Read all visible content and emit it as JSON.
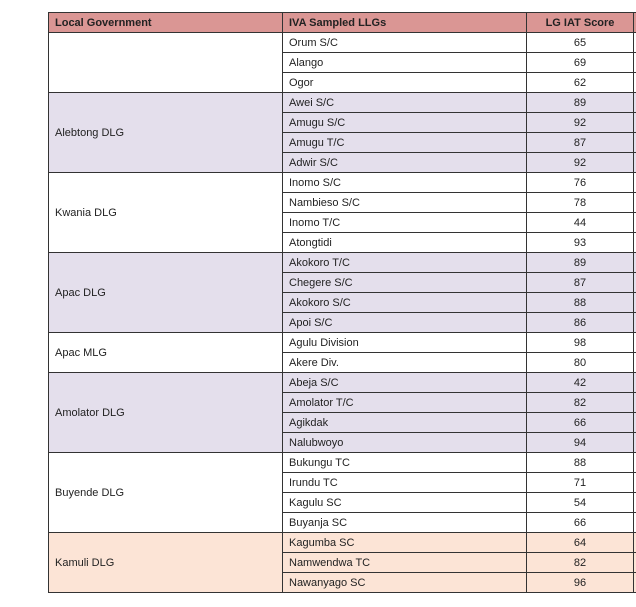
{
  "headers": [
    "Local Government",
    "IVA Sampled LLGs",
    "LG IAT Score",
    ""
  ],
  "colors": {
    "header": "#da9694",
    "white": "#ffffff",
    "purple": "#e4dfec",
    "peach": "#fce4d6"
  },
  "groups": [
    {
      "lg": "",
      "color": "white",
      "rows": [
        [
          "Orum S/C",
          "65"
        ],
        [
          "Alango",
          "69"
        ],
        [
          "Ogor",
          "62"
        ]
      ]
    },
    {
      "lg": "Alebtong DLG",
      "color": "purple",
      "rows": [
        [
          "Awei S/C",
          "89"
        ],
        [
          "Amugu S/C",
          "92"
        ],
        [
          "Amugu T/C",
          "87"
        ],
        [
          "Adwir S/C",
          "92"
        ]
      ]
    },
    {
      "lg": "Kwania DLG",
      "color": "white",
      "rows": [
        [
          "Inomo S/C",
          "76"
        ],
        [
          "Nambieso S/C",
          "78"
        ],
        [
          "Inomo T/C",
          "44"
        ],
        [
          "Atongtidi",
          "93"
        ]
      ]
    },
    {
      "lg": "Apac DLG",
      "color": "purple",
      "rows": [
        [
          "Akokoro T/C",
          "89"
        ],
        [
          "Chegere S/C",
          "87"
        ],
        [
          "Akokoro S/C",
          "88"
        ],
        [
          "Apoi S/C",
          "86"
        ]
      ]
    },
    {
      "lg": "Apac MLG",
      "color": "white",
      "rows": [
        [
          "Agulu Division",
          "98"
        ],
        [
          "Akere Div.",
          "80"
        ]
      ]
    },
    {
      "lg": "Amolator DLG",
      "color": "purple",
      "rows": [
        [
          "Abeja S/C",
          "42"
        ],
        [
          "Amolator T/C",
          "82"
        ],
        [
          "Agikdak",
          "66"
        ],
        [
          "Nalubwoyo",
          "94"
        ]
      ]
    },
    {
      "lg": "Buyende DLG",
      "color": "white",
      "rows": [
        [
          "Bukungu TC",
          "88"
        ],
        [
          "Irundu TC",
          "71"
        ],
        [
          "Kagulu SC",
          "54"
        ],
        [
          "Buyanja SC",
          "66"
        ]
      ]
    },
    {
      "lg": "Kamuli DLG",
      "color": "peach",
      "rows": [
        [
          "Kagumba SC",
          "64"
        ],
        [
          "Namwendwa TC",
          "82"
        ],
        [
          "Nawanyago SC",
          "96"
        ]
      ]
    }
  ]
}
